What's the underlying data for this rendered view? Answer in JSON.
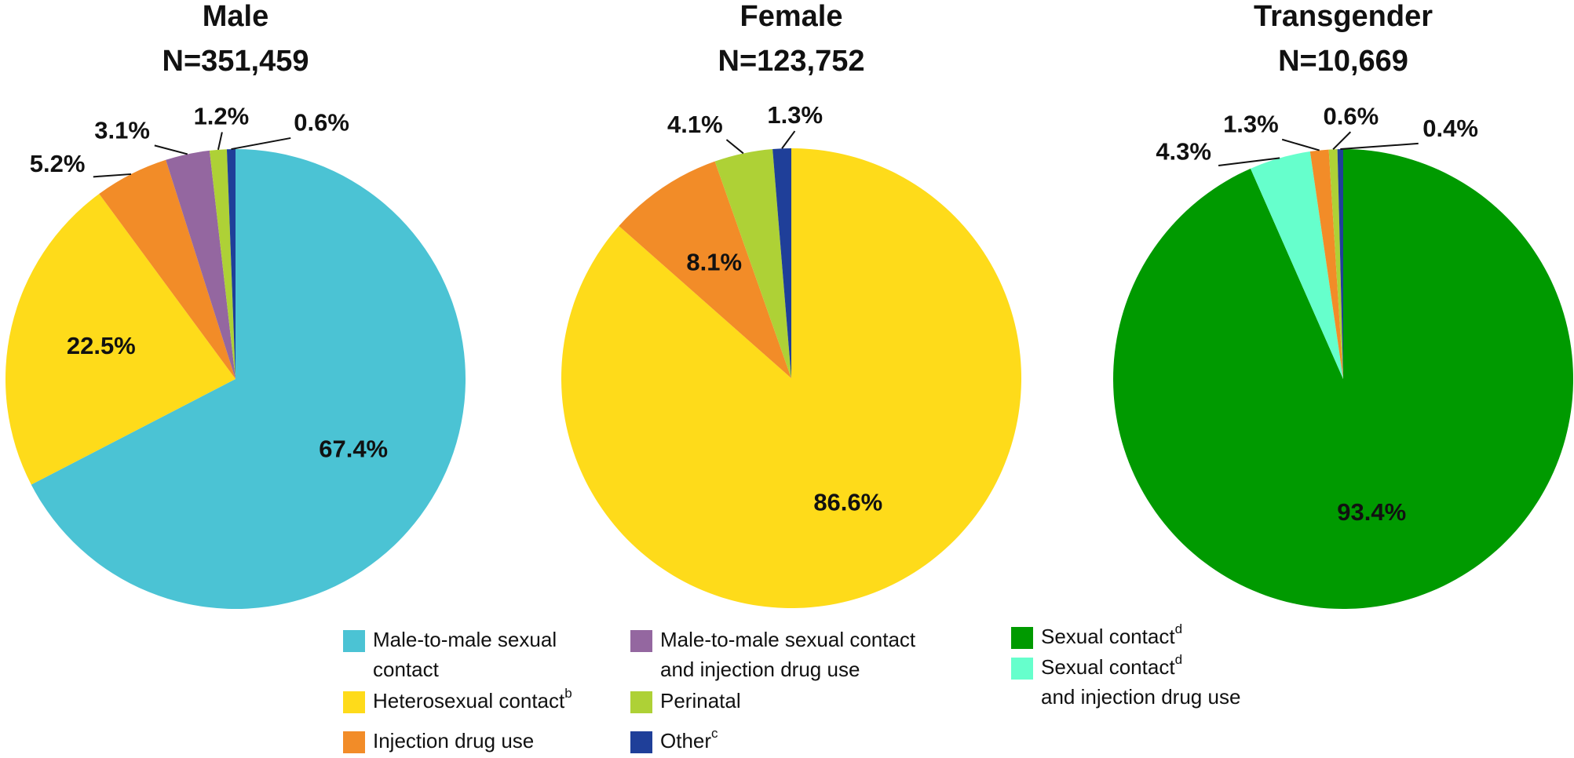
{
  "chart_data": [
    {
      "type": "pie",
      "title": "Male",
      "subtitle": "N=351,459",
      "values": [
        67.4,
        22.5,
        5.2,
        3.1,
        1.2,
        0.6
      ],
      "value_labels": [
        "67.4%",
        "22.5%",
        "5.2%",
        "3.1%",
        "1.2%",
        "0.6%"
      ],
      "colors": [
        "#4bc3d4",
        "#fedb1a",
        "#f28c28",
        "#9467a0",
        "#aed136",
        "#1f3f99"
      ]
    },
    {
      "type": "pie",
      "title": "Female",
      "subtitle": "N=123,752",
      "values": [
        86.6,
        8.1,
        4.1,
        1.3
      ],
      "value_labels": [
        "86.6%",
        "8.1%",
        "4.1%",
        "1.3%"
      ],
      "colors": [
        "#fedb1a",
        "#f28c28",
        "#aed136",
        "#1f3f99"
      ]
    },
    {
      "type": "pie",
      "title": "Transgender",
      "subtitle": "N=10,669",
      "values": [
        93.4,
        4.3,
        1.3,
        0.6,
        0.4
      ],
      "value_labels": [
        "93.4%",
        "4.3%",
        "1.3%",
        "0.6%",
        "0.4%"
      ],
      "colors": [
        "#009a00",
        "#66ffcc",
        "#f28c28",
        "#aed136",
        "#1f3f99"
      ]
    }
  ],
  "legend": [
    {
      "lines": [
        "Male-to-male sexual",
        "contact"
      ],
      "color": "#4bc3d4"
    },
    {
      "lines": [
        "Heterosexual contact"
      ],
      "superscript": "b",
      "color": "#fedb1a"
    },
    {
      "lines": [
        "Injection drug use"
      ],
      "color": "#f28c28"
    },
    {
      "lines": [
        "Male-to-male sexual contact",
        "and injection drug use"
      ],
      "color": "#9467a0"
    },
    {
      "lines": [
        "Perinatal"
      ],
      "color": "#aed136"
    },
    {
      "lines": [
        "Other"
      ],
      "superscript": "c",
      "color": "#1f3f99"
    },
    {
      "lines": [
        "Sexual contact"
      ],
      "superscript": "d",
      "color": "#009a00"
    },
    {
      "lines": [
        "Sexual contact",
        "and injection drug use"
      ],
      "superscript": "d",
      "color": "#66ffcc"
    }
  ]
}
